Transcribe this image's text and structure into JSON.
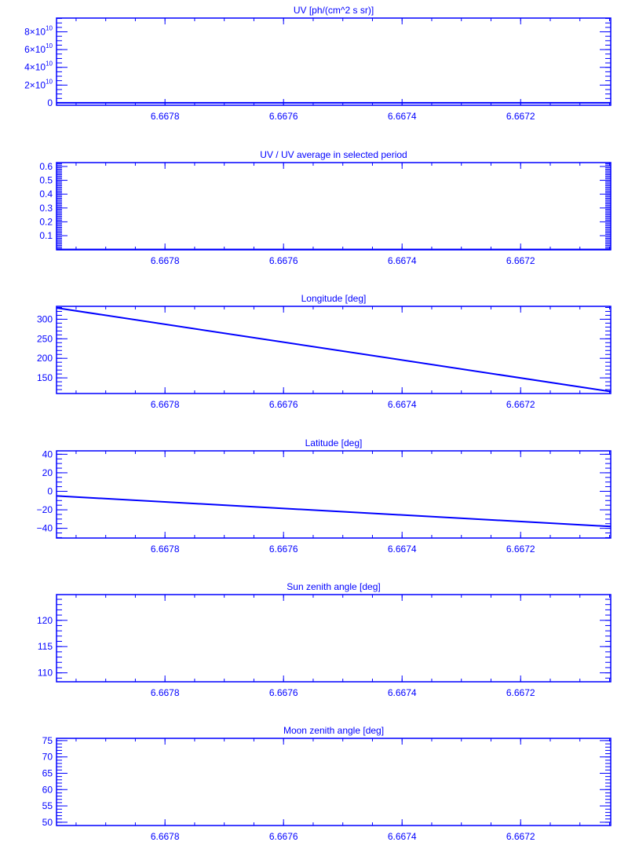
{
  "colors": {
    "foreground": "#0000ff",
    "background": "#ffffff"
  },
  "chart_data": [
    {
      "type": "line",
      "title": "UV [ph/(cm^2 s sr)]",
      "xlim": [
        6.667983,
        6.667048
      ],
      "xticks": [
        "6.6678",
        "6.6676",
        "6.6674",
        "6.6672"
      ],
      "xtick_values": [
        6.6678,
        6.6676,
        6.6674,
        6.6672
      ],
      "x_minor_step": 5e-05,
      "ylim": [
        -2700000000.0,
        95500000000.0
      ],
      "yticks": [
        {
          "v": 0,
          "m": "0",
          "e": ""
        },
        {
          "v": 20000000000.0,
          "m": "2×10",
          "e": "10"
        },
        {
          "v": 40000000000.0,
          "m": "4×10",
          "e": "10"
        },
        {
          "v": 60000000000.0,
          "m": "6×10",
          "e": "10"
        },
        {
          "v": 80000000000.0,
          "m": "8×10",
          "e": "10"
        }
      ],
      "y_minor_step": 5000000000.0,
      "series": [
        {
          "x": [
            6.667983,
            6.667048
          ],
          "y": [
            0,
            0
          ]
        }
      ]
    },
    {
      "type": "line",
      "title": "UV / UV average in selected period",
      "xlim": [
        6.667983,
        6.667048
      ],
      "xticks": [
        "6.6678",
        "6.6676",
        "6.6674",
        "6.6672"
      ],
      "xtick_values": [
        6.6678,
        6.6676,
        6.6674,
        6.6672
      ],
      "x_minor_step": 5e-05,
      "ylim": [
        -0.002,
        0.628
      ],
      "yticks": [
        {
          "v": 0.1,
          "m": "0.1"
        },
        {
          "v": 0.2,
          "m": "0.2"
        },
        {
          "v": 0.3,
          "m": "0.3"
        },
        {
          "v": 0.4,
          "m": "0.4"
        },
        {
          "v": 0.5,
          "m": "0.5"
        },
        {
          "v": 0.6,
          "m": "0.6"
        }
      ],
      "y_minor_step": 0.01,
      "series": [
        {
          "x": [
            6.667983,
            6.667048
          ],
          "y": [
            0,
            0
          ]
        }
      ]
    },
    {
      "type": "line",
      "title": "Longitude [deg]",
      "xlim": [
        6.667983,
        6.667048
      ],
      "xticks": [
        "6.6678",
        "6.6676",
        "6.6674",
        "6.6672"
      ],
      "xtick_values": [
        6.6678,
        6.6676,
        6.6674,
        6.6672
      ],
      "x_minor_step": 5e-05,
      "ylim": [
        110,
        333
      ],
      "yticks": [
        {
          "v": 150,
          "m": "150"
        },
        {
          "v": 200,
          "m": "200"
        },
        {
          "v": 250,
          "m": "250"
        },
        {
          "v": 300,
          "m": "300"
        }
      ],
      "y_minor_step": 10,
      "series": [
        {
          "x": [
            6.667983,
            6.667048
          ],
          "y": [
            329,
            115
          ]
        }
      ]
    },
    {
      "type": "line",
      "title": "Latitude [deg]",
      "xlim": [
        6.667983,
        6.667048
      ],
      "xticks": [
        "6.6678",
        "6.6676",
        "6.6674",
        "6.6672"
      ],
      "xtick_values": [
        6.6678,
        6.6676,
        6.6674,
        6.6672
      ],
      "x_minor_step": 5e-05,
      "ylim": [
        -50.5,
        43.7
      ],
      "yticks": [
        {
          "v": -40,
          "m": "−40"
        },
        {
          "v": -20,
          "m": "−20"
        },
        {
          "v": 0,
          "m": "0"
        },
        {
          "v": 20,
          "m": "20"
        },
        {
          "v": 40,
          "m": "40"
        }
      ],
      "y_minor_step": 5,
      "series": [
        {
          "x": [
            6.667983,
            6.667048
          ],
          "y": [
            -5,
            -38
          ]
        }
      ]
    },
    {
      "type": "line",
      "title": "Sun zenith angle [deg]",
      "xlim": [
        6.667983,
        6.667048
      ],
      "xticks": [
        "6.6678",
        "6.6676",
        "6.6674",
        "6.6672"
      ],
      "xtick_values": [
        6.6678,
        6.6676,
        6.6674,
        6.6672
      ],
      "x_minor_step": 5e-05,
      "ylim": [
        108.3,
        124.9
      ],
      "yticks": [
        {
          "v": 110,
          "m": "110"
        },
        {
          "v": 115,
          "m": "115"
        },
        {
          "v": 120,
          "m": "120"
        }
      ],
      "y_minor_step": 1,
      "series": []
    },
    {
      "type": "line",
      "title": "Moon zenith angle [deg]",
      "xlim": [
        6.667983,
        6.667048
      ],
      "xticks": [
        "6.6678",
        "6.6676",
        "6.6674",
        "6.6672"
      ],
      "xtick_values": [
        6.6678,
        6.6676,
        6.6674,
        6.6672
      ],
      "x_minor_step": 5e-05,
      "ylim": [
        49.0,
        75.7
      ],
      "yticks": [
        {
          "v": 50,
          "m": "50"
        },
        {
          "v": 55,
          "m": "55"
        },
        {
          "v": 60,
          "m": "60"
        },
        {
          "v": 65,
          "m": "65"
        },
        {
          "v": 70,
          "m": "70"
        },
        {
          "v": 75,
          "m": "75"
        }
      ],
      "y_minor_step": 1,
      "series": []
    }
  ]
}
